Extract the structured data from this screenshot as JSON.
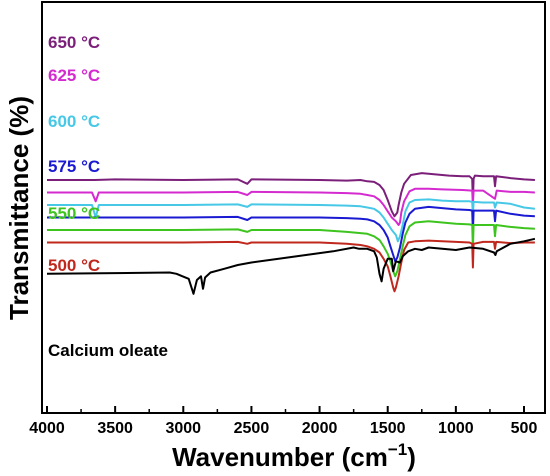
{
  "chart_data": {
    "type": "line",
    "title": "",
    "xlabel": "Wavenumber (cm",
    "xlabel_sup": "−1",
    "xlabel_end": ")",
    "ylabel": "Transmittance (%)",
    "xlim": [
      4000,
      400
    ],
    "x_reversed": true,
    "x_ticks": [
      4000,
      3500,
      3000,
      2500,
      2000,
      1500,
      1000,
      500
    ],
    "x_tick_labels": [
      "4000",
      "3500",
      "3000",
      "2500",
      "2000",
      "1500",
      "1000",
      "500"
    ],
    "y_ticks_shown": false,
    "legend": "inline labels at top-left of each trace",
    "series": [
      {
        "name": "650 °C",
        "color": "#7b1f7a",
        "baseline": 4,
        "points": [
          [
            4000,
            0.0
          ],
          [
            3650,
            0.0
          ],
          [
            3500,
            0.05
          ],
          [
            3000,
            0.0
          ],
          [
            2600,
            0.05
          ],
          [
            2530,
            -0.3
          ],
          [
            2500,
            0.05
          ],
          [
            2000,
            0.0
          ],
          [
            1800,
            -0.05
          ],
          [
            1700,
            0.0
          ],
          [
            1650,
            -0.1
          ],
          [
            1600,
            -0.15
          ],
          [
            1560,
            -0.4
          ],
          [
            1530,
            -0.8
          ],
          [
            1500,
            -1.6
          ],
          [
            1470,
            -2.5
          ],
          [
            1450,
            -2.9
          ],
          [
            1430,
            -2.6
          ],
          [
            1420,
            -2.0
          ],
          [
            1400,
            -1.0
          ],
          [
            1380,
            -0.3
          ],
          [
            1330,
            0.4
          ],
          [
            1250,
            0.55
          ],
          [
            1150,
            0.45
          ],
          [
            1050,
            0.35
          ],
          [
            950,
            0.3
          ],
          [
            900,
            0.3
          ],
          [
            880,
            0.1
          ],
          [
            875,
            -1.7
          ],
          [
            870,
            0.1
          ],
          [
            860,
            0.35
          ],
          [
            800,
            0.3
          ],
          [
            720,
            0.3
          ],
          [
            713,
            -0.5
          ],
          [
            705,
            0.3
          ],
          [
            600,
            0.15
          ],
          [
            500,
            0.05
          ],
          [
            420,
            0.0
          ]
        ]
      },
      {
        "name": "625 °C",
        "color": "#d42ad0",
        "baseline": 3,
        "points": [
          [
            4000,
            0.0
          ],
          [
            3670,
            0.0
          ],
          [
            3643,
            -0.7
          ],
          [
            3620,
            0.0
          ],
          [
            3000,
            0.0
          ],
          [
            2600,
            0.05
          ],
          [
            2530,
            -0.2
          ],
          [
            2500,
            0.05
          ],
          [
            2000,
            0.0
          ],
          [
            1800,
            -0.05
          ],
          [
            1700,
            -0.1
          ],
          [
            1650,
            -0.2
          ],
          [
            1600,
            -0.3
          ],
          [
            1560,
            -0.6
          ],
          [
            1530,
            -1.0
          ],
          [
            1500,
            -1.5
          ],
          [
            1470,
            -2.0
          ],
          [
            1440,
            -2.3
          ],
          [
            1420,
            -2.6
          ],
          [
            1410,
            -2.4
          ],
          [
            1400,
            -1.6
          ],
          [
            1380,
            -0.7
          ],
          [
            1340,
            0.1
          ],
          [
            1300,
            0.3
          ],
          [
            1200,
            0.3
          ],
          [
            1100,
            0.25
          ],
          [
            950,
            0.2
          ],
          [
            880,
            0.15
          ],
          [
            875,
            -0.9
          ],
          [
            870,
            0.15
          ],
          [
            800,
            0.15
          ],
          [
            713,
            -0.5
          ],
          [
            700,
            0.15
          ],
          [
            600,
            0.05
          ],
          [
            500,
            0.05
          ],
          [
            420,
            0.0
          ]
        ]
      },
      {
        "name": "600 °C",
        "color": "#46c8e6",
        "baseline": 2,
        "points": [
          [
            4000,
            0.0
          ],
          [
            3670,
            0.0
          ],
          [
            3643,
            -1.0
          ],
          [
            3620,
            0.0
          ],
          [
            3000,
            0.0
          ],
          [
            2600,
            0.05
          ],
          [
            2530,
            -0.15
          ],
          [
            2500,
            0.05
          ],
          [
            2000,
            0.0
          ],
          [
            1800,
            -0.05
          ],
          [
            1700,
            -0.1
          ],
          [
            1650,
            -0.2
          ],
          [
            1600,
            -0.3
          ],
          [
            1560,
            -0.6
          ],
          [
            1530,
            -1.0
          ],
          [
            1500,
            -1.5
          ],
          [
            1470,
            -2.0
          ],
          [
            1440,
            -2.4
          ],
          [
            1425,
            -2.9
          ],
          [
            1410,
            -2.5
          ],
          [
            1390,
            -1.6
          ],
          [
            1370,
            -0.5
          ],
          [
            1340,
            0.2
          ],
          [
            1300,
            0.4
          ],
          [
            1200,
            0.45
          ],
          [
            1100,
            0.35
          ],
          [
            1000,
            0.3
          ],
          [
            900,
            0.3
          ],
          [
            880,
            0.25
          ],
          [
            875,
            -0.8
          ],
          [
            870,
            0.25
          ],
          [
            800,
            0.2
          ],
          [
            720,
            0.2
          ],
          [
            713,
            -0.2
          ],
          [
            700,
            0.2
          ],
          [
            600,
            0.1
          ],
          [
            500,
            -0.2
          ],
          [
            420,
            -0.3
          ]
        ]
      },
      {
        "name": "575 °C",
        "color": "#1a1ad2",
        "baseline": 1,
        "points": [
          [
            4000,
            0.0
          ],
          [
            3000,
            0.0
          ],
          [
            2600,
            0.05
          ],
          [
            2530,
            -0.2
          ],
          [
            2500,
            0.0
          ],
          [
            2000,
            0.0
          ],
          [
            1800,
            -0.05
          ],
          [
            1700,
            -0.1
          ],
          [
            1650,
            -0.15
          ],
          [
            1600,
            -0.3
          ],
          [
            1560,
            -0.6
          ],
          [
            1530,
            -1.0
          ],
          [
            1500,
            -1.6
          ],
          [
            1480,
            -2.3
          ],
          [
            1460,
            -3.0
          ],
          [
            1445,
            -3.5
          ],
          [
            1430,
            -3.2
          ],
          [
            1410,
            -2.4
          ],
          [
            1390,
            -1.3
          ],
          [
            1370,
            -0.4
          ],
          [
            1340,
            0.3
          ],
          [
            1300,
            0.7
          ],
          [
            1200,
            0.85
          ],
          [
            1100,
            0.75
          ],
          [
            1000,
            0.65
          ],
          [
            900,
            0.6
          ],
          [
            880,
            0.55
          ],
          [
            875,
            -1.2
          ],
          [
            870,
            0.55
          ],
          [
            800,
            0.55
          ],
          [
            720,
            0.55
          ],
          [
            713,
            -0.3
          ],
          [
            705,
            0.55
          ],
          [
            600,
            0.3
          ],
          [
            500,
            0.15
          ],
          [
            420,
            0.1
          ]
        ]
      },
      {
        "name": "550 °C",
        "color": "#3ec41e",
        "baseline": 0,
        "points": [
          [
            4000,
            0.0
          ],
          [
            3000,
            0.0
          ],
          [
            2600,
            0.05
          ],
          [
            2530,
            -0.15
          ],
          [
            2500,
            0.0
          ],
          [
            2000,
            0.0
          ],
          [
            1800,
            -0.15
          ],
          [
            1700,
            -0.25
          ],
          [
            1650,
            -0.3
          ],
          [
            1600,
            -0.5
          ],
          [
            1560,
            -0.8
          ],
          [
            1530,
            -1.3
          ],
          [
            1500,
            -1.9
          ],
          [
            1480,
            -2.5
          ],
          [
            1460,
            -3.3
          ],
          [
            1445,
            -3.7
          ],
          [
            1430,
            -3.3
          ],
          [
            1410,
            -2.3
          ],
          [
            1390,
            -1.3
          ],
          [
            1370,
            -0.4
          ],
          [
            1340,
            0.3
          ],
          [
            1300,
            0.6
          ],
          [
            1200,
            0.7
          ],
          [
            1100,
            0.6
          ],
          [
            1000,
            0.5
          ],
          [
            900,
            0.45
          ],
          [
            880,
            0.4
          ],
          [
            875,
            -1.5
          ],
          [
            870,
            0.4
          ],
          [
            800,
            0.4
          ],
          [
            720,
            0.4
          ],
          [
            713,
            -0.5
          ],
          [
            705,
            0.4
          ],
          [
            600,
            0.25
          ],
          [
            500,
            0.15
          ],
          [
            420,
            0.1
          ]
        ]
      },
      {
        "name": "500 °C",
        "color": "#c0281e",
        "baseline": -1,
        "points": [
          [
            4000,
            0.0
          ],
          [
            3000,
            0.0
          ],
          [
            2600,
            0.05
          ],
          [
            2530,
            -0.1
          ],
          [
            2500,
            0.0
          ],
          [
            2000,
            0.0
          ],
          [
            1800,
            -0.1
          ],
          [
            1700,
            -0.2
          ],
          [
            1650,
            -0.3
          ],
          [
            1600,
            -0.5
          ],
          [
            1560,
            -0.8
          ],
          [
            1530,
            -1.3
          ],
          [
            1500,
            -1.9
          ],
          [
            1480,
            -2.7
          ],
          [
            1460,
            -3.6
          ],
          [
            1450,
            -3.9
          ],
          [
            1440,
            -3.6
          ],
          [
            1420,
            -2.7
          ],
          [
            1400,
            -1.6
          ],
          [
            1380,
            -0.6
          ],
          [
            1350,
            0.0
          ],
          [
            1300,
            0.1
          ],
          [
            1200,
            0.15
          ],
          [
            1100,
            0.1
          ],
          [
            1000,
            0.05
          ],
          [
            900,
            0.0
          ],
          [
            880,
            -0.1
          ],
          [
            875,
            -2.0
          ],
          [
            870,
            -0.1
          ],
          [
            800,
            0.05
          ],
          [
            720,
            0.05
          ],
          [
            713,
            -0.5
          ],
          [
            705,
            0.05
          ],
          [
            600,
            -0.05
          ],
          [
            500,
            0.0
          ],
          [
            420,
            0.0
          ]
        ]
      },
      {
        "name": "Calcium oleate",
        "color": "#000000",
        "baseline": -3.5,
        "points": [
          [
            4000,
            0.0
          ],
          [
            3500,
            0.05
          ],
          [
            3100,
            0.1
          ],
          [
            3050,
            0.0
          ],
          [
            3006,
            -0.2
          ],
          [
            2960,
            -0.4
          ],
          [
            2925,
            -1.6
          ],
          [
            2900,
            -0.5
          ],
          [
            2870,
            -0.2
          ],
          [
            2855,
            -1.2
          ],
          [
            2840,
            -0.3
          ],
          [
            2800,
            0.1
          ],
          [
            2700,
            0.4
          ],
          [
            2600,
            0.7
          ],
          [
            2500,
            0.9
          ],
          [
            2300,
            1.2
          ],
          [
            2100,
            1.5
          ],
          [
            1900,
            1.8
          ],
          [
            1750,
            2.1
          ],
          [
            1710,
            2.0
          ],
          [
            1650,
            2.0
          ],
          [
            1600,
            1.8
          ],
          [
            1580,
            1.3
          ],
          [
            1560,
            0.0
          ],
          [
            1545,
            -0.6
          ],
          [
            1530,
            0.4
          ],
          [
            1500,
            1.2
          ],
          [
            1470,
            1.2
          ],
          [
            1460,
            0.2
          ],
          [
            1450,
            0.6
          ],
          [
            1440,
            1.0
          ],
          [
            1410,
            0.9
          ],
          [
            1390,
            1.4
          ],
          [
            1350,
            1.8
          ],
          [
            1300,
            2.0
          ],
          [
            1250,
            1.9
          ],
          [
            1200,
            2.1
          ],
          [
            1100,
            2.0
          ],
          [
            1000,
            1.9
          ],
          [
            900,
            2.1
          ],
          [
            800,
            2.0
          ],
          [
            720,
            1.7
          ],
          [
            710,
            1.5
          ],
          [
            700,
            1.8
          ],
          [
            600,
            2.4
          ],
          [
            500,
            2.6
          ],
          [
            420,
            2.8
          ]
        ]
      }
    ]
  }
}
